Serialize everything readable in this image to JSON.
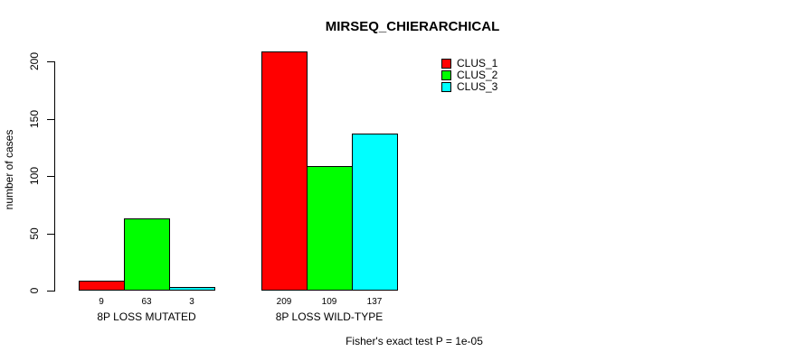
{
  "figure": {
    "background": "#FFFFFF"
  },
  "chart_data": {
    "type": "bar",
    "title": "MIRSEQ_CHIERARCHICAL",
    "ylabel": "number of cases",
    "xlabel": "",
    "categories": [
      "8P LOSS MUTATED",
      "8P LOSS WILD-TYPE"
    ],
    "series": [
      {
        "name": "CLUS_1",
        "color": "#FF0000",
        "values": [
          9,
          209
        ]
      },
      {
        "name": "CLUS_2",
        "color": "#00FF00",
        "values": [
          63,
          109
        ]
      },
      {
        "name": "CLUS_3",
        "color": "#00FFFF",
        "values": [
          3,
          137
        ]
      }
    ],
    "bar_value_labels": [
      [
        9,
        63,
        3
      ],
      [
        209,
        109,
        137
      ]
    ],
    "yticks": [
      0,
      50,
      100,
      150,
      200
    ],
    "ylim": [
      0,
      209
    ],
    "grid": false,
    "legend_position": "top-right",
    "annotation": "Fisher's exact test P = 1e-05"
  }
}
